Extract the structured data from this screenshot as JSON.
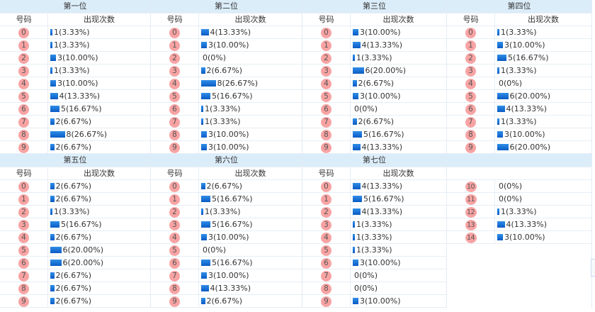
{
  "table": {
    "col_code_label": "号码",
    "col_count_label": "出现次数",
    "bar_color": "#1a73d6",
    "ball_color": "#f8a3a3",
    "header_bg": "#dcedfa",
    "sections": [
      {
        "title": "第一位",
        "rows": [
          {
            "code": "0",
            "count": 1,
            "text": "1(3.33%)"
          },
          {
            "code": "1",
            "count": 1,
            "text": "1(3.33%)"
          },
          {
            "code": "2",
            "count": 3,
            "text": "3(10.00%)"
          },
          {
            "code": "3",
            "count": 1,
            "text": "1(3.33%)"
          },
          {
            "code": "4",
            "count": 3,
            "text": "3(10.00%)"
          },
          {
            "code": "5",
            "count": 4,
            "text": "4(13.33%)"
          },
          {
            "code": "6",
            "count": 5,
            "text": "5(16.67%)"
          },
          {
            "code": "7",
            "count": 2,
            "text": "2(6.67%)"
          },
          {
            "code": "8",
            "count": 8,
            "text": "8(26.67%)"
          },
          {
            "code": "9",
            "count": 2,
            "text": "2(6.67%)"
          }
        ]
      },
      {
        "title": "第二位",
        "rows": [
          {
            "code": "0",
            "count": 4,
            "text": "4(13.33%)"
          },
          {
            "code": "1",
            "count": 3,
            "text": "3(10.00%)"
          },
          {
            "code": "2",
            "count": 0,
            "text": "0(0%)"
          },
          {
            "code": "3",
            "count": 2,
            "text": "2(6.67%)"
          },
          {
            "code": "4",
            "count": 8,
            "text": "8(26.67%)"
          },
          {
            "code": "5",
            "count": 5,
            "text": "5(16.67%)"
          },
          {
            "code": "6",
            "count": 1,
            "text": "1(3.33%)"
          },
          {
            "code": "7",
            "count": 1,
            "text": "1(3.33%)"
          },
          {
            "code": "8",
            "count": 3,
            "text": "3(10.00%)"
          },
          {
            "code": "9",
            "count": 3,
            "text": "3(10.00%)"
          }
        ]
      },
      {
        "title": "第三位",
        "rows": [
          {
            "code": "0",
            "count": 3,
            "text": "3(10.00%)"
          },
          {
            "code": "1",
            "count": 4,
            "text": "4(13.33%)"
          },
          {
            "code": "2",
            "count": 1,
            "text": "1(3.33%)"
          },
          {
            "code": "3",
            "count": 6,
            "text": "6(20.00%)"
          },
          {
            "code": "4",
            "count": 2,
            "text": "2(6.67%)"
          },
          {
            "code": "5",
            "count": 3,
            "text": "3(10.00%)"
          },
          {
            "code": "6",
            "count": 0,
            "text": "0(0%)"
          },
          {
            "code": "7",
            "count": 2,
            "text": "2(6.67%)"
          },
          {
            "code": "8",
            "count": 5,
            "text": "5(16.67%)"
          },
          {
            "code": "9",
            "count": 4,
            "text": "4(13.33%)"
          }
        ]
      },
      {
        "title": "第四位",
        "rows": [
          {
            "code": "0",
            "count": 1,
            "text": "1(3.33%)"
          },
          {
            "code": "1",
            "count": 3,
            "text": "3(10.00%)"
          },
          {
            "code": "2",
            "count": 5,
            "text": "5(16.67%)"
          },
          {
            "code": "3",
            "count": 1,
            "text": "1(3.33%)"
          },
          {
            "code": "4",
            "count": 0,
            "text": "0(0%)"
          },
          {
            "code": "5",
            "count": 6,
            "text": "6(20.00%)"
          },
          {
            "code": "6",
            "count": 4,
            "text": "4(13.33%)"
          },
          {
            "code": "7",
            "count": 1,
            "text": "1(3.33%)"
          },
          {
            "code": "8",
            "count": 3,
            "text": "3(10.00%)"
          },
          {
            "code": "9",
            "count": 6,
            "text": "6(20.00%)"
          }
        ]
      },
      {
        "title": "第五位",
        "rows": [
          {
            "code": "0",
            "count": 2,
            "text": "2(6.67%)"
          },
          {
            "code": "1",
            "count": 2,
            "text": "2(6.67%)"
          },
          {
            "code": "2",
            "count": 1,
            "text": "1(3.33%)"
          },
          {
            "code": "3",
            "count": 5,
            "text": "5(16.67%)"
          },
          {
            "code": "4",
            "count": 2,
            "text": "2(6.67%)"
          },
          {
            "code": "5",
            "count": 6,
            "text": "6(20.00%)"
          },
          {
            "code": "6",
            "count": 6,
            "text": "6(20.00%)"
          },
          {
            "code": "7",
            "count": 2,
            "text": "2(6.67%)"
          },
          {
            "code": "8",
            "count": 2,
            "text": "2(6.67%)"
          },
          {
            "code": "9",
            "count": 2,
            "text": "2(6.67%)"
          }
        ]
      },
      {
        "title": "第六位",
        "rows": [
          {
            "code": "0",
            "count": 2,
            "text": "2(6.67%)"
          },
          {
            "code": "1",
            "count": 5,
            "text": "5(16.67%)"
          },
          {
            "code": "2",
            "count": 1,
            "text": "1(3.33%)"
          },
          {
            "code": "3",
            "count": 5,
            "text": "5(16.67%)"
          },
          {
            "code": "4",
            "count": 3,
            "text": "3(10.00%)"
          },
          {
            "code": "5",
            "count": 0,
            "text": "0(0%)"
          },
          {
            "code": "6",
            "count": 5,
            "text": "5(16.67%)"
          },
          {
            "code": "7",
            "count": 3,
            "text": "3(10.00%)"
          },
          {
            "code": "8",
            "count": 4,
            "text": "4(13.33%)"
          },
          {
            "code": "9",
            "count": 2,
            "text": "2(6.67%)"
          }
        ]
      },
      {
        "title": "第七位",
        "rows": [
          {
            "code": "0",
            "count": 4,
            "text": "4(13.33%)"
          },
          {
            "code": "1",
            "count": 5,
            "text": "5(16.67%)"
          },
          {
            "code": "2",
            "count": 4,
            "text": "4(13.33%)"
          },
          {
            "code": "3",
            "count": 1,
            "text": "1(3.33%)"
          },
          {
            "code": "4",
            "count": 1,
            "text": "1(3.33%)"
          },
          {
            "code": "5",
            "count": 1,
            "text": "1(3.33%)"
          },
          {
            "code": "6",
            "count": 3,
            "text": "3(10.00%)"
          },
          {
            "code": "7",
            "count": 0,
            "text": "0(0%)"
          },
          {
            "code": "8",
            "count": 0,
            "text": "0(0%)"
          },
          {
            "code": "9",
            "count": 3,
            "text": "3(10.00%)"
          }
        ]
      },
      {
        "title": "",
        "rows": [
          {
            "code": "10",
            "count": 0,
            "text": "0(0%)"
          },
          {
            "code": "11",
            "count": 0,
            "text": "0(0%)"
          },
          {
            "code": "12",
            "count": 1,
            "text": "1(3.33%)"
          },
          {
            "code": "13",
            "count": 4,
            "text": "4(13.33%)"
          },
          {
            "code": "14",
            "count": 3,
            "text": "3(10.00%)"
          }
        ]
      }
    ]
  }
}
